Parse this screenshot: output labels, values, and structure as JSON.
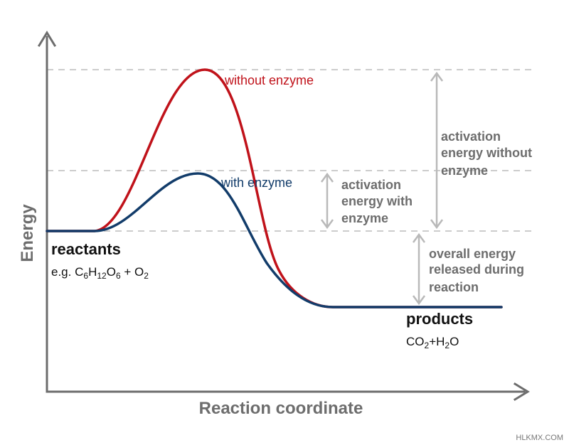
{
  "axes": {
    "y_label": "Energy",
    "x_label": "Reaction coordinate"
  },
  "colors": {
    "axis": "#6d6d6d",
    "without_enzyme": "#c0121a",
    "with_enzyme": "#123c6a",
    "annotation": "#6d6d6d",
    "guide": "#cccccc"
  },
  "curves": {
    "without_enzyme": {
      "label": "without enzyme"
    },
    "with_enzyme": {
      "label": "with enzyme"
    }
  },
  "annotations": {
    "activation_without": [
      "activation",
      "energy without",
      "enzyme"
    ],
    "activation_with": [
      "activation",
      "energy with",
      "enzyme"
    ],
    "overall_release": [
      "overall energy",
      "released during",
      "reaction"
    ]
  },
  "states": {
    "reactants": {
      "label": "reactants",
      "prefix": "e.g. ",
      "formula": [
        {
          "t": "C",
          "sub": false
        },
        {
          "t": "6",
          "sub": true
        },
        {
          "t": "H",
          "sub": false
        },
        {
          "t": "12",
          "sub": true
        },
        {
          "t": "O",
          "sub": false
        },
        {
          "t": "6",
          "sub": true
        },
        {
          "t": " + O",
          "sub": false
        },
        {
          "t": "2",
          "sub": true
        }
      ]
    },
    "products": {
      "label": "products",
      "formula": [
        {
          "t": "CO",
          "sub": false
        },
        {
          "t": "2",
          "sub": true
        },
        {
          "t": "+H",
          "sub": false
        },
        {
          "t": "2",
          "sub": true
        },
        {
          "t": "O",
          "sub": false
        }
      ]
    }
  },
  "watermark": "HLKMX.COM"
}
